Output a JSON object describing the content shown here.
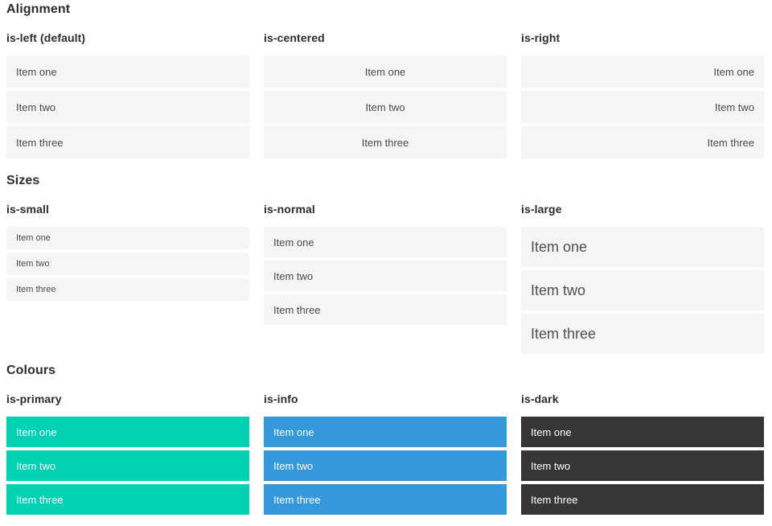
{
  "colors": {
    "primary": "#00d1b2",
    "info": "#3498db",
    "dark": "#363636",
    "item_bg": "#f5f5f5",
    "heading_text": "#2d2d2d",
    "item_text": "#4a4a4a"
  },
  "sections": [
    {
      "title": "Alignment",
      "columns": [
        {
          "label": "is-left (default)",
          "variant": "left",
          "items": [
            "Item one",
            "Item two",
            "Item three"
          ]
        },
        {
          "label": "is-centered",
          "variant": "centered",
          "items": [
            "Item one",
            "Item two",
            "Item three"
          ]
        },
        {
          "label": "is-right",
          "variant": "right",
          "items": [
            "Item one",
            "Item two",
            "Item three"
          ]
        }
      ]
    },
    {
      "title": "Sizes",
      "columns": [
        {
          "label": "is-small",
          "variant": "small",
          "items": [
            "Item one",
            "Item two",
            "Item three"
          ]
        },
        {
          "label": "is-normal",
          "variant": "normal",
          "items": [
            "Item one",
            "Item two",
            "Item three"
          ]
        },
        {
          "label": "is-large",
          "variant": "large",
          "items": [
            "Item one",
            "Item two",
            "Item three"
          ]
        }
      ]
    },
    {
      "title": "Colours",
      "columns": [
        {
          "label": "is-primary",
          "variant": "primary",
          "items": [
            "Item one",
            "Item two",
            "Item three"
          ]
        },
        {
          "label": "is-info",
          "variant": "info",
          "items": [
            "Item one",
            "Item two",
            "Item three"
          ]
        },
        {
          "label": "is-dark",
          "variant": "dark",
          "items": [
            "Item one",
            "Item two",
            "Item three"
          ]
        }
      ]
    }
  ]
}
